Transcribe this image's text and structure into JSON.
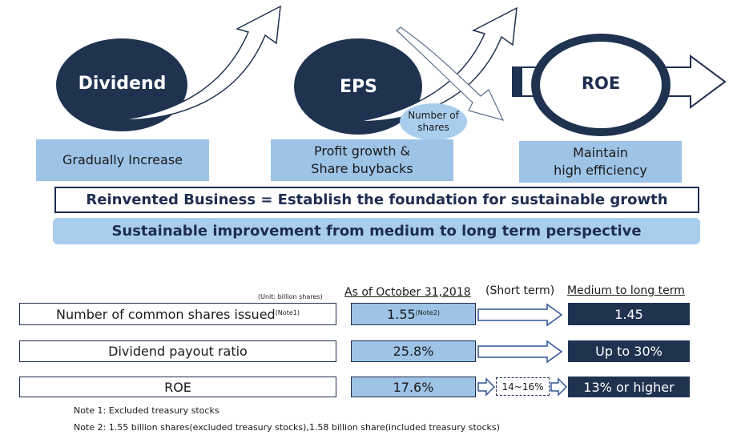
{
  "top": {
    "dividend": {
      "title": "Dividend",
      "caption": "Gradually Increase"
    },
    "eps": {
      "title": "EPS",
      "bubble_line1": "Number of",
      "bubble_line2": "shares",
      "caption_line1": "Profit growth &",
      "caption_line2": "Share buybacks"
    },
    "roe": {
      "title": "ROE",
      "caption_line1": "Maintain",
      "caption_line2": "high efficiency"
    }
  },
  "banners": {
    "reinvented": "Reinvented Business = Establish the foundation for sustainable growth",
    "sustainable": "Sustainable improvement from medium to long term perspective"
  },
  "table": {
    "unit": "(Unit: billion shares)",
    "col_current": "As of October 31,2018",
    "col_short": "(Short term)",
    "col_long": "Medium to long term",
    "rows": [
      {
        "label": "Number of common shares issued",
        "label_note": "(Note1)",
        "current": "1.55",
        "current_note": "(Note2)",
        "target": "1.45"
      },
      {
        "label": "Dividend payout ratio",
        "current": "25.8%",
        "target": "Up to 30%"
      },
      {
        "label": "ROE",
        "current": "17.6%",
        "short": "14~16%",
        "target": "13% or higher"
      }
    ]
  },
  "notes": {
    "note1": "Note 1: Excluded treasury stocks",
    "note2": "Note 2: 1.55 billion shares(excluded treasury stocks),1.58 billion share(included treasury stocks)"
  },
  "colors": {
    "navy": "#1f3250",
    "light_blue": "#9dc3e6",
    "banner_blue": "#a9ceed"
  }
}
